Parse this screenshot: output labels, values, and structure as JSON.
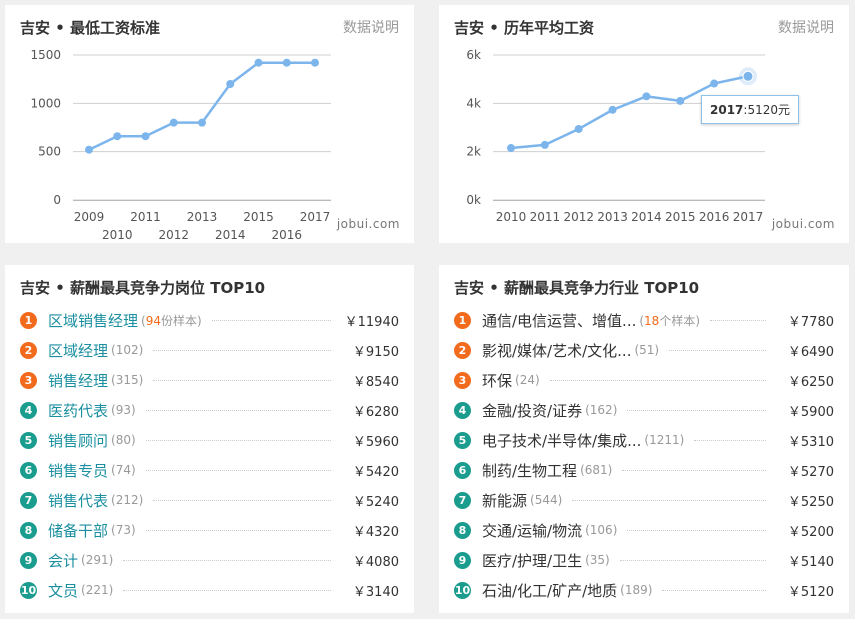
{
  "panels": {
    "min_wage": {
      "title": "吉安 • 最低工资标准",
      "link": "数据说明",
      "watermark": "jobui.com"
    },
    "avg_salary": {
      "title": "吉安 • 历年平均工资",
      "link": "数据说明",
      "watermark": "jobui.com",
      "tooltip": {
        "year": "2017",
        "sep": ":",
        "value": "5120元"
      }
    },
    "top_jobs": {
      "title": "吉安 • 薪酬最具竞争力岗位 TOP10"
    },
    "top_industries": {
      "title": "吉安 • 薪酬最具竞争力行业 TOP10"
    }
  },
  "chart_data": [
    {
      "type": "line",
      "title": "吉安 • 最低工资标准",
      "x": [
        2009,
        2010,
        2011,
        2012,
        2013,
        2014,
        2015,
        2016,
        2017
      ],
      "values": [
        520,
        660,
        660,
        800,
        800,
        1200,
        1420,
        1420,
        1420
      ],
      "ylim": [
        0,
        1500
      ],
      "yticks": [
        "0",
        "500",
        "1000",
        "1500"
      ],
      "xticks_top": [
        "2009",
        "2011",
        "2013",
        "2015",
        "2017"
      ],
      "xticks_bottom": [
        "2010",
        "2012",
        "2014",
        "2016"
      ],
      "grid": true,
      "color": "#7cb5ec"
    },
    {
      "type": "line",
      "title": "吉安 • 历年平均工资",
      "x": [
        2010,
        2011,
        2012,
        2013,
        2014,
        2015,
        2016,
        2017
      ],
      "values": [
        2150,
        2280,
        2940,
        3730,
        4290,
        4100,
        4820,
        5120
      ],
      "ylim": [
        0,
        6000
      ],
      "yticks": [
        "0k",
        "2k",
        "4k",
        "6k"
      ],
      "xticks": [
        "2010",
        "2011",
        "2012",
        "2013",
        "2014",
        "2015",
        "2016",
        "2017"
      ],
      "grid": true,
      "color": "#7cb5ec",
      "highlight_point": "2017"
    }
  ],
  "jobs": [
    {
      "rank": "1",
      "name": "区域销售经理",
      "count_num": "94",
      "count_suffix": "份样本",
      "salary": "￥11940"
    },
    {
      "rank": "2",
      "name": "区域经理",
      "count": "(102)",
      "salary": "￥9150"
    },
    {
      "rank": "3",
      "name": "销售经理",
      "count": "(315)",
      "salary": "￥8540"
    },
    {
      "rank": "4",
      "name": "医药代表",
      "count": "(93)",
      "salary": "￥6280"
    },
    {
      "rank": "5",
      "name": "销售顾问",
      "count": "(80)",
      "salary": "￥5960"
    },
    {
      "rank": "6",
      "name": "销售专员",
      "count": "(74)",
      "salary": "￥5420"
    },
    {
      "rank": "7",
      "name": "销售代表",
      "count": "(212)",
      "salary": "￥5240"
    },
    {
      "rank": "8",
      "name": "储备干部",
      "count": "(73)",
      "salary": "￥4320"
    },
    {
      "rank": "9",
      "name": "会计",
      "count": "(291)",
      "salary": "￥4080"
    },
    {
      "rank": "10",
      "name": "文员",
      "count": "(221)",
      "salary": "￥3140"
    }
  ],
  "industries": [
    {
      "rank": "1",
      "name": "通信/电信运营、增值...",
      "count_num": "18",
      "count_suffix": "个样本",
      "salary": "￥7780"
    },
    {
      "rank": "2",
      "name": "影视/媒体/艺术/文化...",
      "count": "(51)",
      "salary": "￥6490"
    },
    {
      "rank": "3",
      "name": "环保",
      "count": "(24)",
      "salary": "￥6250"
    },
    {
      "rank": "4",
      "name": "金融/投资/证券",
      "count": "(162)",
      "salary": "￥5900"
    },
    {
      "rank": "5",
      "name": "电子技术/半导体/集成...",
      "count": "(1211)",
      "salary": "￥5310"
    },
    {
      "rank": "6",
      "name": "制药/生物工程",
      "count": "(681)",
      "salary": "￥5270"
    },
    {
      "rank": "7",
      "name": "新能源",
      "count": "(544)",
      "salary": "￥5250"
    },
    {
      "rank": "8",
      "name": "交通/运输/物流",
      "count": "(106)",
      "salary": "￥5200"
    },
    {
      "rank": "9",
      "name": "医疗/护理/卫生",
      "count": "(35)",
      "salary": "￥5140"
    },
    {
      "rank": "10",
      "name": "石油/化工/矿产/地质",
      "count": "(189)",
      "salary": "￥5120"
    }
  ],
  "colors": {
    "line": "#7cb5ec",
    "rank_hot": "#f26a1b",
    "rank_cool": "#1a9c8e",
    "job_link": "#1a8fa0"
  }
}
